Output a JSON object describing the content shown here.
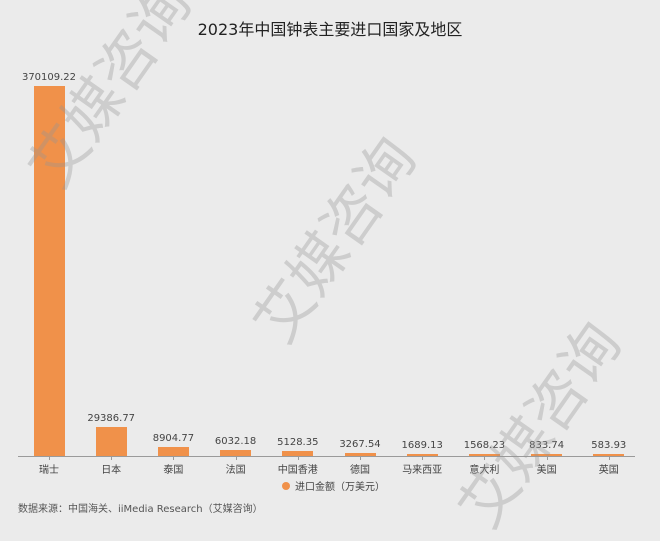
{
  "title": "2023年中国钟表主要进口国家及地区",
  "legend": {
    "label": "进口金额（万美元）",
    "color": "#f0914a"
  },
  "source": "数据来源：中国海关、iiMedia Research（艾媒咨询）",
  "watermark": "艾媒咨询",
  "chart_data": {
    "type": "bar",
    "title": "2023年中国钟表主要进口国家及地区",
    "xlabel": "",
    "ylabel": "",
    "categories": [
      "瑞士",
      "日本",
      "泰国",
      "法国",
      "中国香港",
      "德国",
      "马来西亚",
      "意大利",
      "美国",
      "英国"
    ],
    "series": [
      {
        "name": "进口金额（万美元）",
        "values": [
          370109.22,
          29386.77,
          8904.77,
          6032.18,
          5128.35,
          3267.54,
          1689.13,
          1568.23,
          833.74,
          583.93
        ],
        "labels": [
          "370109.22",
          "29386.77",
          "8904.77",
          "6032.18",
          "5128.35",
          "3267.54",
          "1689.13",
          "1568.23",
          "833.74",
          "583.93"
        ]
      }
    ],
    "ylim": [
      0,
      370109.22
    ],
    "grid": false,
    "legend_position": "bottom",
    "color": "#f0914a"
  }
}
